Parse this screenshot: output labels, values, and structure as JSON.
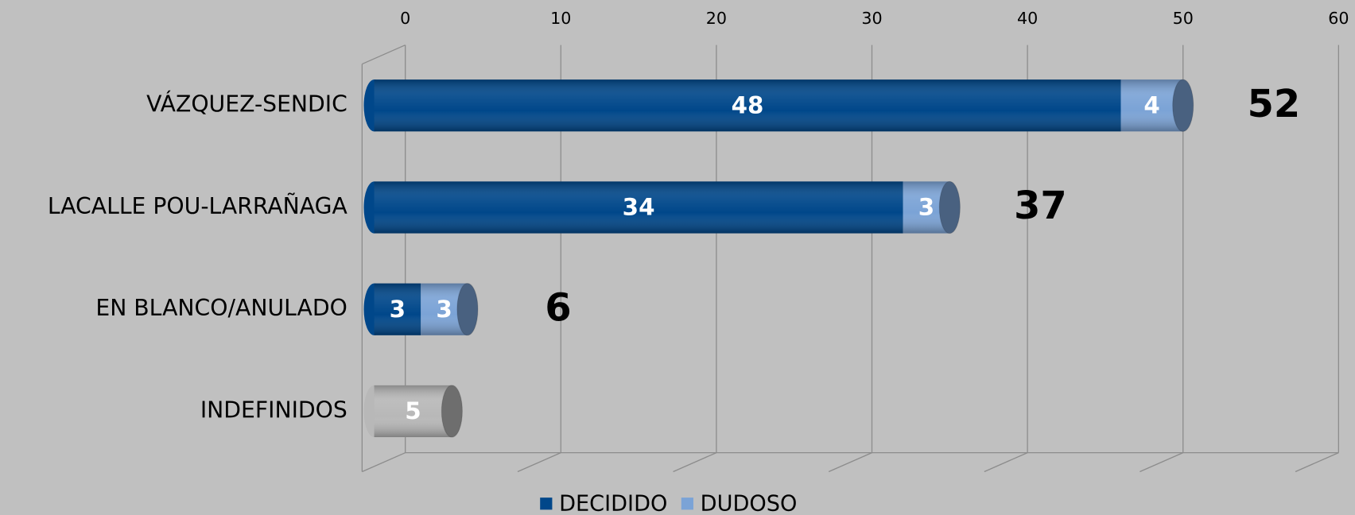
{
  "chart_data": {
    "type": "bar",
    "orientation": "horizontal",
    "stacked": true,
    "categories": [
      "VÁZQUEZ-SENDIC",
      "LACALLE POU-LARRAÑAGA",
      "EN BLANCO/ANULADO",
      "INDEFINIDOS"
    ],
    "series": [
      {
        "name": "DECIDIDO",
        "color": "#00478a",
        "values": [
          48,
          34,
          3,
          null
        ]
      },
      {
        "name": "DUDOSO",
        "color": "#7ba3d6",
        "values": [
          4,
          3,
          3,
          null
        ]
      },
      {
        "color": "#b8b8b8",
        "values": [
          null,
          null,
          null,
          5
        ]
      }
    ],
    "total_labels": [
      52,
      37,
      6,
      null
    ],
    "xlim": [
      0,
      60
    ],
    "xticks": [
      0,
      10,
      20,
      30,
      40,
      50,
      60
    ],
    "grid": true,
    "legend": "bottom"
  }
}
